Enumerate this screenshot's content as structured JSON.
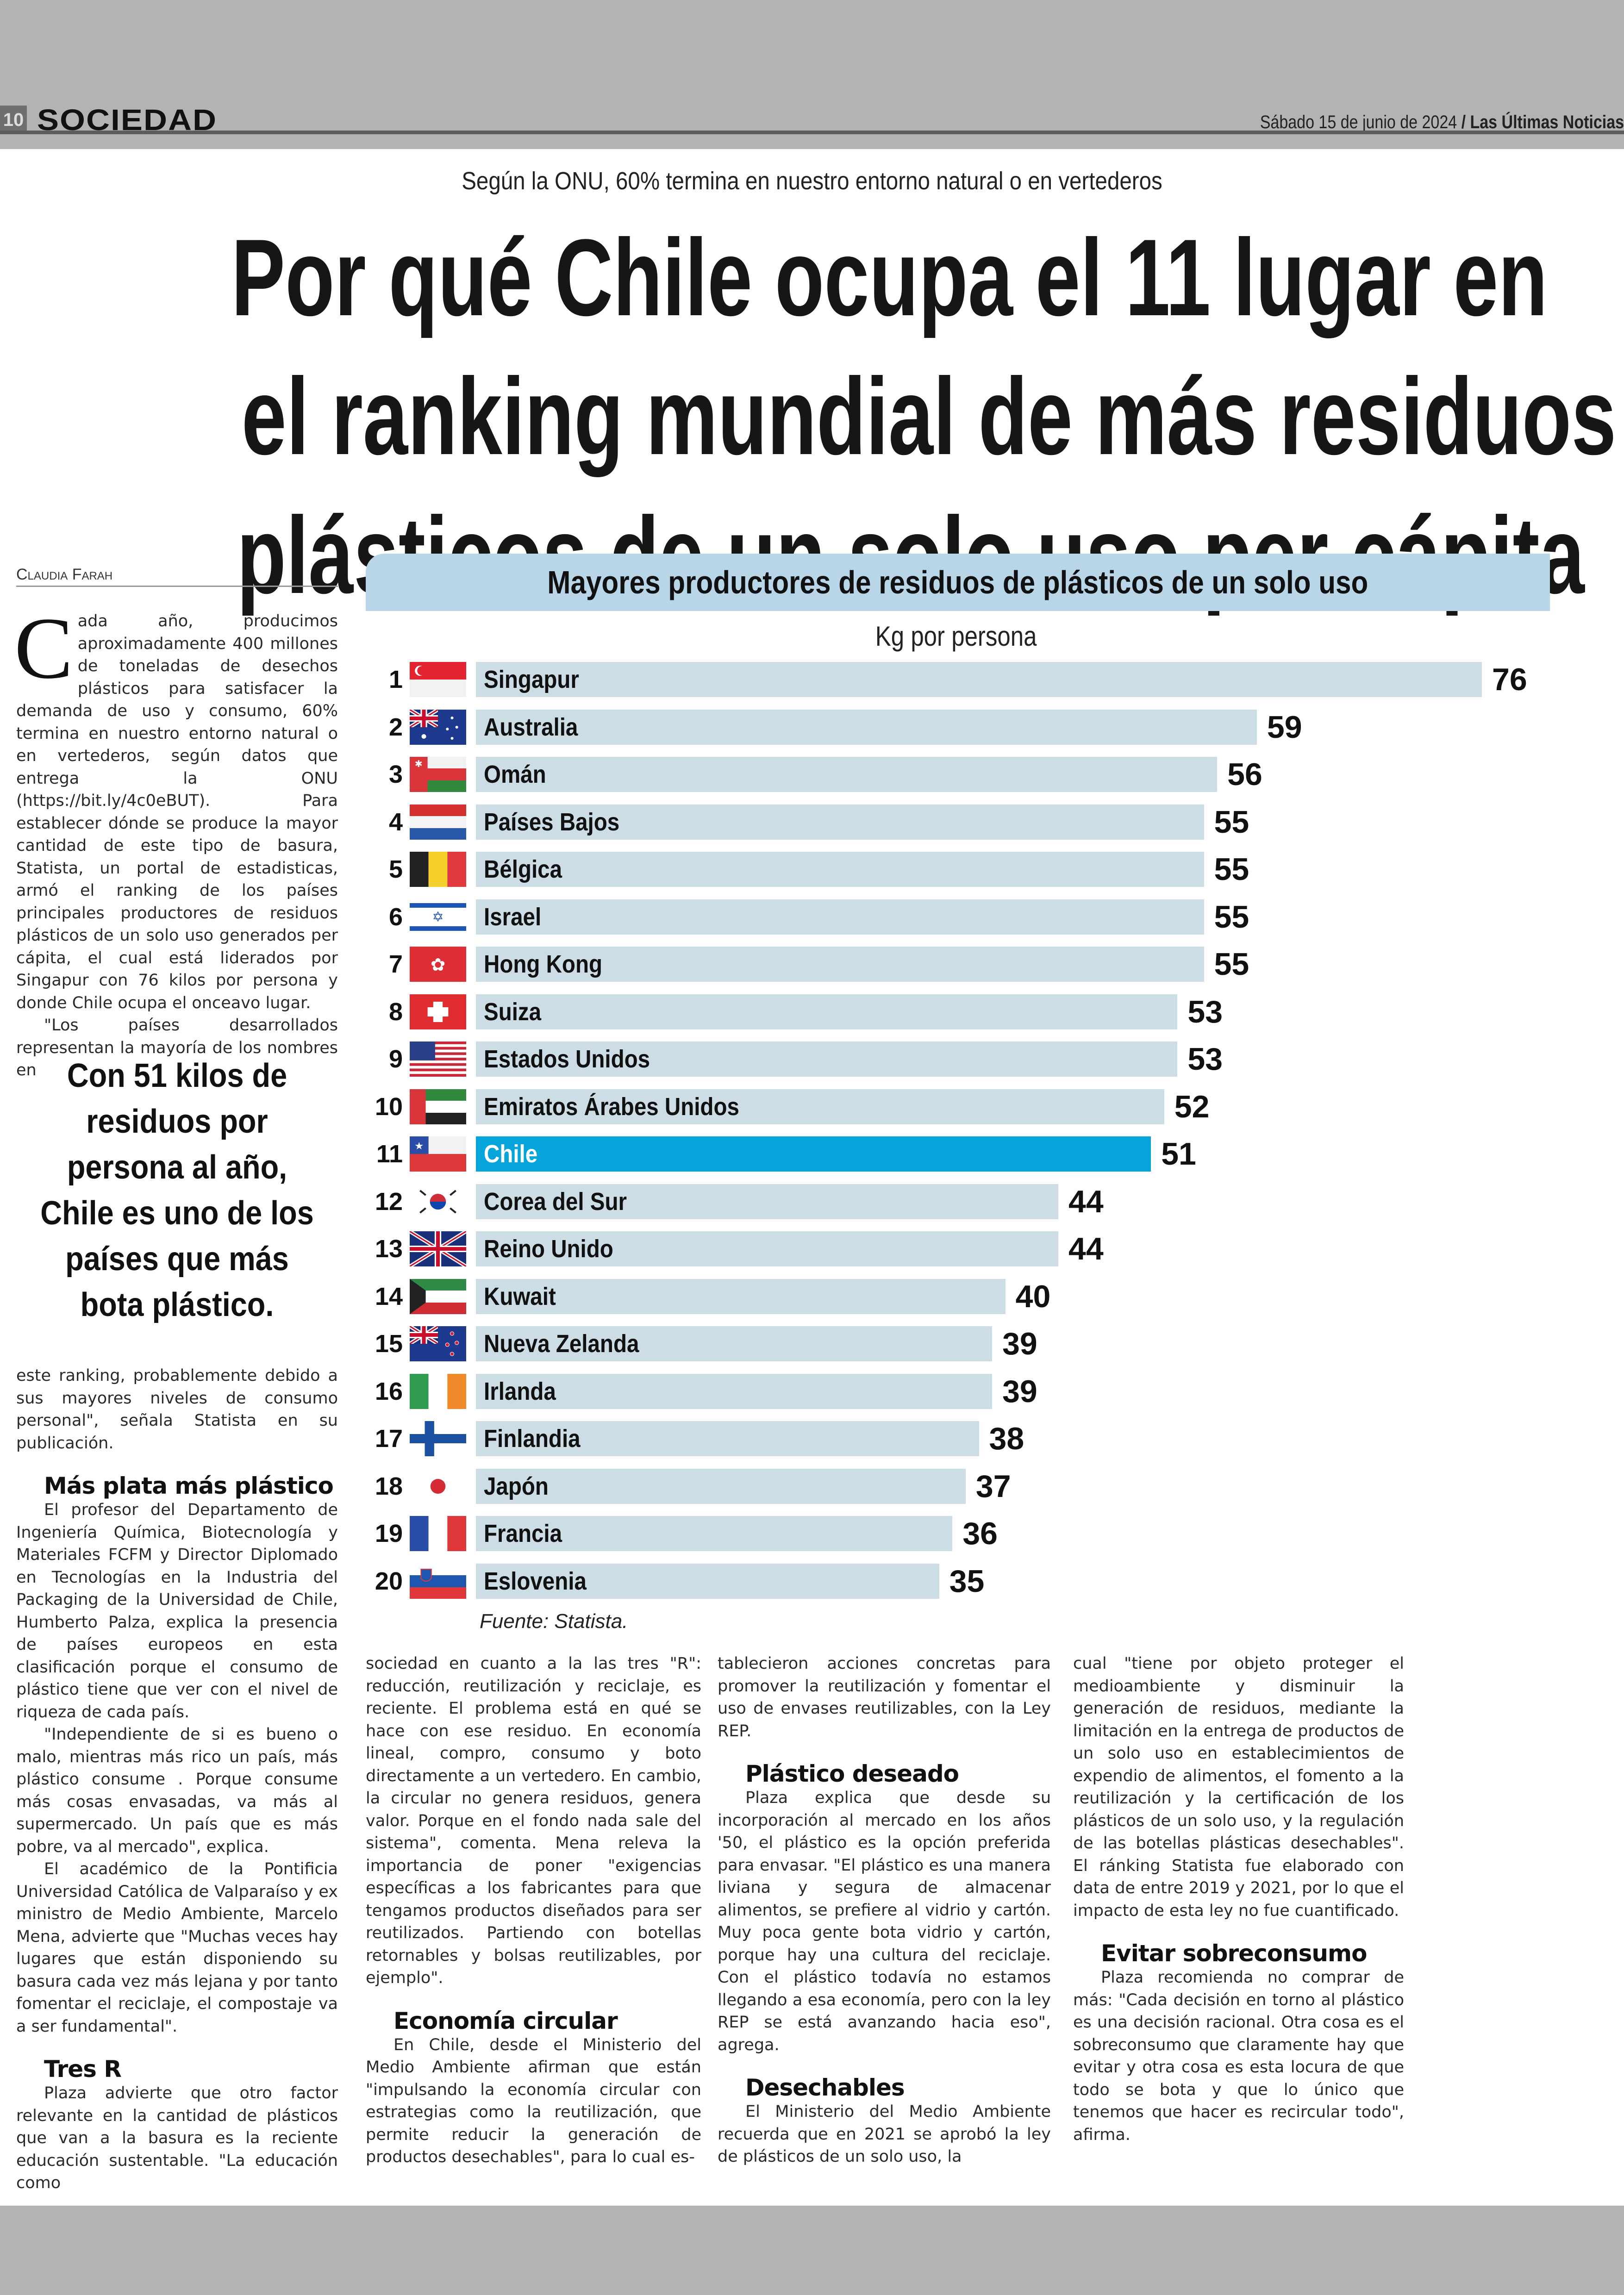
{
  "masthead": {
    "page_number": "10",
    "section": "SOCIEDAD",
    "date": "Sábado 15 de junio de 2024",
    "publication": "/ Las Últimas Noticias"
  },
  "article": {
    "kicker": "Según la ONU, 60% termina en nuestro entorno natural o en vertederos",
    "headline": [
      "Por qué Chile ocupa el 11 lugar en",
      "el ranking mundial de más residuos",
      "plásticos de un solo uso per cápita"
    ],
    "byline": "Claudia Farah",
    "drop_cap": "C",
    "intro_first": "ada año, producimos aproximadamente 400 millones de toneladas de desechos plásticos para satisfacer la demanda de uso y consumo, 60% termina en nuestro entorno natural o en vertederos, según datos que entrega la ONU (https://bit.ly/4c0eBUT). Para establecer dónde se produce la mayor cantidad de este tipo de basura, Statista, un portal de estadisticas, armó el ranking de los países principales productores de residuos plásticos de un solo uso generados per cápita, el cual está liderados por Singapur con 76 kilos por persona y donde Chile ocupa el onceavo lugar.",
    "intro_second": "\"Los países desarrollados representan la mayoría de los nombres en",
    "pull_quote": "Con 51 kilos de residuos por persona al año, Chile es uno de los países que más bota plástico.",
    "col1_continued": "este ranking, probablemente debido a sus mayores niveles de consumo personal\", señala Statista en su publicación.",
    "sub1": "Más plata más plástico",
    "sub1_p1": "El profesor del Departamento de Ingeniería Química, Biotecnología y Materiales FCFM y Director Diplomado en Tecnologías en la Industria del Packaging de la Universidad de Chile, Humberto Palza, explica la presencia de países europeos en esta clasificación porque el consumo de plástico tiene que ver con el nivel de riqueza de cada país.",
    "sub1_p2": "\"Independiente de si es bueno o malo, mientras más rico un país, más plástico consume . Porque consume más cosas envasadas, va más al supermercado. Un país que es más pobre, va al mercado\", explica.",
    "sub1_p3": "El académico de la Pontificia Universidad Católica de Valparaíso y ex ministro de Medio Ambiente, Marcelo Mena, advierte que \"Muchas veces hay lugares que están disponiendo su basura cada vez más lejana y por tanto fomentar el reciclaje, el compostaje va a ser fundamental\".",
    "sub2": "Tres R",
    "sub2_p1": "Plaza advierte que otro factor relevante en la cantidad de plásticos que van a la basura es la reciente educación sustentable. \"La educación como",
    "col2_continued": "sociedad en cuanto a la las tres \"R\": reducción, reutilización y reciclaje, es reciente. El problema está en qué se hace con ese residuo. En economía lineal, compro, consumo y boto directamente a un vertedero. En cambio, la circular no genera residuos, genera valor. Porque en el fondo nada sale del sistema\", comenta. Mena releva la importancia de poner \"exigencias específicas a los fabricantes para que tengamos productos diseñados para ser reutilizados. Partiendo con botellas retornables y bolsas reutilizables, por ejemplo\".",
    "sub3": "Economía circular",
    "sub3_p1": "En Chile, desde el Ministerio del Medio Ambiente afirman que están \"impulsando la economía circular con estrategias como la reutilización, que permite reducir la generación de productos desechables\", para lo cual es-",
    "col3_continued": "tablecieron acciones concretas para promover la reutilización y fomentar el uso de envases reutilizables, con la Ley REP.",
    "sub4": "Plástico deseado",
    "sub4_p1": "Plaza explica que desde su incorporación al mercado en los años '50, el plástico es la opción preferida para envasar. \"El plástico es una manera liviana y segura de almacenar alimentos, se prefiere al vidrio y cartón. Muy poca gente bota vidrio y cartón, porque hay una cultura del reciclaje. Con el plástico todavía no estamos llegando a esa economía, pero con la ley REP se está avanzando hacia eso\", agrega.",
    "sub5": "Desechables",
    "sub5_p1": "El Ministerio del Medio Ambiente recuerda que en 2021 se aprobó la ley de plásticos de un solo uso, la",
    "col4_continued": "cual \"tiene por objeto proteger el medioambiente y disminuir la generación de residuos, mediante la limitación en la entrega de productos de un solo uso en establecimientos de expendio de alimentos, el fomento a la reutilización y la certificación de los plásticos de un solo uso, y la regulación de las botellas plásticas desechables\". El ránking Statista fue elaborado con data de entre 2019 y 2021, por lo que el impacto de esta ley no fue cuantificado.",
    "sub6": "Evitar sobreconsumo",
    "sub6_p1": "Plaza recomienda no comprar de más: \"Cada decisión en torno al plástico es una decisión racional. Otra cosa es el sobreconsumo que claramente hay que evitar y otra cosa es esta locura de que todo se bota y que lo único que tenemos que hacer es recircular todo\", afirma."
  },
  "chart_data": {
    "type": "bar",
    "orientation": "horizontal",
    "title": "Mayores productores de residuos de plásticos de un solo uso",
    "xlabel": "Kg por persona",
    "source": "Fuente: Statista.",
    "xlim": [
      0,
      76
    ],
    "grid": false,
    "highlight": "Chile",
    "colors": {
      "bar": "#cddde6",
      "highlight": "#05a5dc",
      "header": "#b9d6e8"
    },
    "ranks": [
      1,
      2,
      3,
      4,
      5,
      6,
      7,
      8,
      9,
      10,
      11,
      12,
      13,
      14,
      15,
      16,
      17,
      18,
      19,
      20
    ],
    "categories": [
      "Singapur",
      "Australia",
      "Omán",
      "Países Bajos",
      "Bélgica",
      "Israel",
      "Hong Kong",
      "Suiza",
      "Estados Unidos",
      "Emiratos Árabes Unidos",
      "Chile",
      "Corea del Sur",
      "Reino Unido",
      "Kuwait",
      "Nueva Zelanda",
      "Irlanda",
      "Finlandia",
      "Japón",
      "Francia",
      "Eslovenia"
    ],
    "values": [
      76,
      59,
      56,
      55,
      55,
      55,
      55,
      53,
      53,
      52,
      51,
      44,
      44,
      40,
      39,
      39,
      38,
      37,
      36,
      35
    ],
    "flags": [
      "flag-singapore",
      "flag-australia",
      "flag-oman",
      "flag-netherlands",
      "flag-belgium",
      "flag-israel",
      "flag-hong-kong",
      "flag-switzerland",
      "flag-usa",
      "flag-uae",
      "flag-chile",
      "flag-south-korea",
      "flag-uk",
      "flag-kuwait",
      "flag-new-zealand",
      "flag-ireland",
      "flag-finland",
      "flag-japan",
      "flag-france",
      "flag-slovenia"
    ]
  }
}
